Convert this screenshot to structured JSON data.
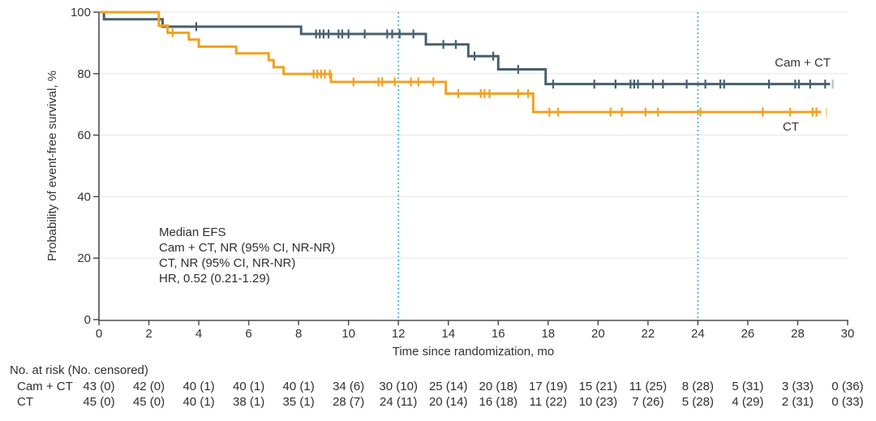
{
  "figure": {
    "ylabel": "Probability of event-free survival, %",
    "xlabel": "Time since randomization, mo"
  },
  "annotation": {
    "lines": [
      "Median EFS",
      "Cam + CT, NR (95% CI, NR-NR)",
      "CT, NR (95% CI, NR-NR)",
      "HR, 0.52 (0.21-1.29)"
    ]
  },
  "risk_table": {
    "header": "No. at risk (No. censored)",
    "times": [
      0,
      2,
      4,
      6,
      8,
      10,
      12,
      14,
      16,
      18,
      20,
      22,
      24,
      26,
      28,
      30
    ],
    "rows": [
      {
        "label": "Cam + CT",
        "counts": [
          "43 (0)",
          "42 (0)",
          "40 (1)",
          "40 (1)",
          "40 (1)",
          "34 (6)",
          "30 (10)",
          "25 (14)",
          "20 (18)",
          "17 (19)",
          "15 (21)",
          "11 (25)",
          "8 (28)",
          "5 (31)",
          "3 (33)",
          "0 (36)"
        ]
      },
      {
        "label": "CT",
        "counts": [
          "45 (0)",
          "45 (0)",
          "40 (1)",
          "38 (1)",
          "35 (1)",
          "28 (7)",
          "24 (11)",
          "20 (14)",
          "16 (18)",
          "11 (22)",
          "10 (23)",
          "7 (26)",
          "5 (28)",
          "4 (29)",
          "2 (31)",
          "0 (33)"
        ]
      }
    ]
  },
  "chart_data": {
    "type": "line",
    "subtype": "kaplan-meier-step",
    "title": "",
    "xlabel": "Time since randomization, mo",
    "ylabel": "Probability of event-free survival, %",
    "xlim": [
      0,
      30
    ],
    "ylim": [
      0,
      100
    ],
    "x_ticks": [
      0,
      2,
      4,
      6,
      8,
      10,
      12,
      14,
      16,
      18,
      20,
      22,
      24,
      26,
      28,
      30
    ],
    "y_ticks": [
      0,
      20,
      40,
      60,
      80,
      100
    ],
    "y_gridlines": [
      20,
      40,
      60,
      80,
      100
    ],
    "grid": true,
    "reference_lines_x": [
      12,
      24
    ],
    "legend_position": "direct-curve-labels",
    "colors": {
      "camct": "#46606f",
      "ct": "#f0a121",
      "reference": "#35b4e4",
      "grid": "#e9e9e9",
      "axis": "#4d4d4d",
      "text": "#333333"
    },
    "series": [
      {
        "name": "Cam + CT",
        "color": "#46606f",
        "steps": [
          [
            0,
            100
          ],
          [
            0.2,
            97.7
          ],
          [
            2.55,
            95.3
          ],
          [
            8.1,
            92.9
          ],
          [
            13.1,
            89.5
          ],
          [
            14.8,
            85.7
          ],
          [
            16.0,
            81.4
          ],
          [
            17.9,
            76.6
          ]
        ],
        "end_time": 29.3,
        "censors": [
          [
            3.9,
            95.3
          ],
          [
            8.7,
            92.9
          ],
          [
            8.85,
            92.9
          ],
          [
            9.0,
            92.9
          ],
          [
            9.2,
            92.9
          ],
          [
            9.6,
            92.9
          ],
          [
            9.75,
            92.9
          ],
          [
            10.0,
            92.9
          ],
          [
            10.65,
            92.9
          ],
          [
            11.55,
            92.9
          ],
          [
            11.75,
            92.9
          ],
          [
            12.05,
            92.9
          ],
          [
            12.6,
            92.9
          ],
          [
            13.8,
            89.5
          ],
          [
            14.3,
            89.5
          ],
          [
            15.05,
            85.7
          ],
          [
            15.8,
            85.7
          ],
          [
            16.8,
            81.4
          ],
          [
            18.2,
            76.6
          ],
          [
            19.85,
            76.6
          ],
          [
            20.7,
            76.6
          ],
          [
            21.3,
            76.6
          ],
          [
            21.45,
            76.6
          ],
          [
            21.6,
            76.6
          ],
          [
            22.2,
            76.6
          ],
          [
            22.6,
            76.6
          ],
          [
            23.55,
            76.6
          ],
          [
            24.3,
            76.6
          ],
          [
            24.9,
            76.6
          ],
          [
            25.05,
            76.6
          ],
          [
            26.85,
            76.6
          ],
          [
            27.9,
            76.6
          ],
          [
            28.05,
            76.6
          ],
          [
            28.5,
            76.6
          ],
          [
            29.1,
            76.6
          ]
        ],
        "faint_censors": [
          [
            29.4,
            76.6
          ]
        ]
      },
      {
        "name": "CT",
        "color": "#f0a121",
        "steps": [
          [
            0,
            100
          ],
          [
            2.4,
            95.6
          ],
          [
            2.75,
            93.3
          ],
          [
            3.6,
            91.1
          ],
          [
            4.0,
            88.8
          ],
          [
            5.5,
            86.6
          ],
          [
            6.8,
            84.4
          ],
          [
            7.0,
            82.1
          ],
          [
            7.4,
            79.9
          ],
          [
            9.3,
            77.3
          ],
          [
            13.9,
            73.5
          ],
          [
            17.4,
            67.5
          ]
        ],
        "end_time": 28.95,
        "censors": [
          [
            2.95,
            93.3
          ],
          [
            8.6,
            79.9
          ],
          [
            8.75,
            79.9
          ],
          [
            8.9,
            79.9
          ],
          [
            9.05,
            79.9
          ],
          [
            9.25,
            79.9
          ],
          [
            10.2,
            77.3
          ],
          [
            11.2,
            77.3
          ],
          [
            11.35,
            77.3
          ],
          [
            11.85,
            77.3
          ],
          [
            12.5,
            77.3
          ],
          [
            12.8,
            77.3
          ],
          [
            13.4,
            77.3
          ],
          [
            14.4,
            73.5
          ],
          [
            15.3,
            73.5
          ],
          [
            15.45,
            73.5
          ],
          [
            15.65,
            73.5
          ],
          [
            16.8,
            73.5
          ],
          [
            17.2,
            73.5
          ],
          [
            18.05,
            67.5
          ],
          [
            18.4,
            67.5
          ],
          [
            20.5,
            67.5
          ],
          [
            20.95,
            67.5
          ],
          [
            21.9,
            67.5
          ],
          [
            22.4,
            67.5
          ],
          [
            24.1,
            67.5
          ],
          [
            26.6,
            67.5
          ],
          [
            27.7,
            67.5
          ],
          [
            28.6,
            67.5
          ],
          [
            28.75,
            67.5
          ]
        ],
        "faint_censors": [
          [
            29.15,
            67.5
          ]
        ]
      }
    ]
  }
}
